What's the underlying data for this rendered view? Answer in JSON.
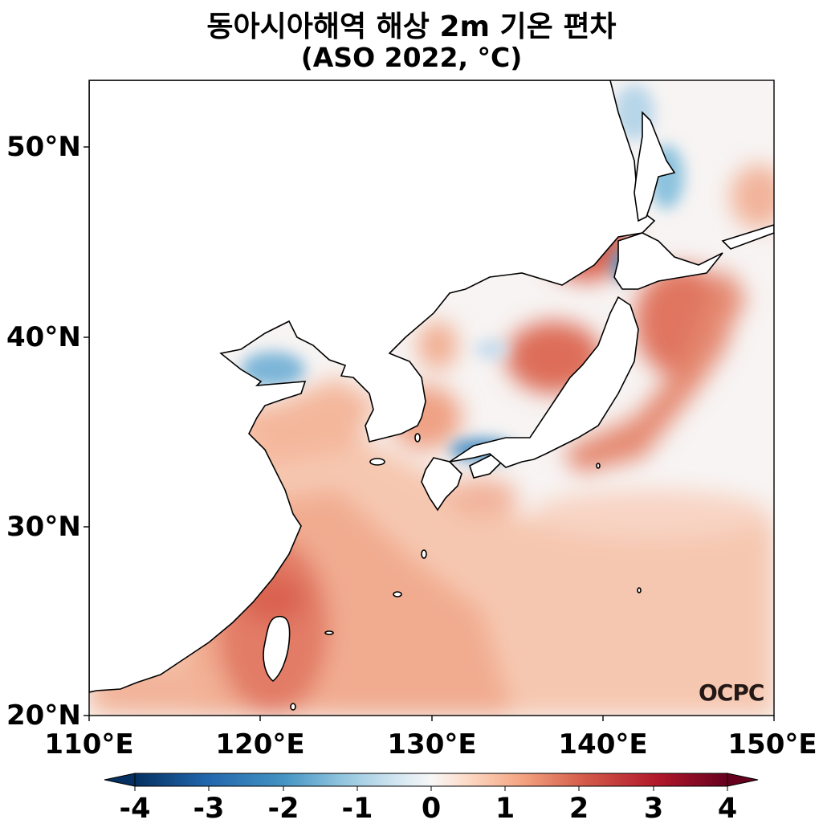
{
  "title": {
    "line1": "동아시아해역 해상 2m 기온 편차",
    "line2": "(ASO 2022, °C)"
  },
  "map": {
    "lon_range": [
      110,
      150
    ],
    "lat_range": [
      20,
      53.5
    ],
    "lat_ticks": [
      "50°N",
      "40°N",
      "30°N",
      "20°N"
    ],
    "lon_ticks": [
      "110°E",
      "120°E",
      "130°E",
      "140°E",
      "150°E"
    ],
    "colormap": "RdBu_r diverging",
    "land_color": "#ffffff",
    "coast_color": "#000000"
  },
  "colorbar": {
    "min": -4,
    "max": 4,
    "labels": [
      "-4",
      "-3",
      "-2",
      "-1",
      "0",
      "1",
      "2",
      "3",
      "4"
    ],
    "extend": "both",
    "colors": [
      "#053061",
      "#2166ac",
      "#4393c3",
      "#92c5de",
      "#d1e5f0",
      "#f7f7f7",
      "#fddbc7",
      "#f4a582",
      "#d6604d",
      "#b2182b",
      "#67001f"
    ]
  },
  "logo": {
    "text": "OCPC"
  }
}
